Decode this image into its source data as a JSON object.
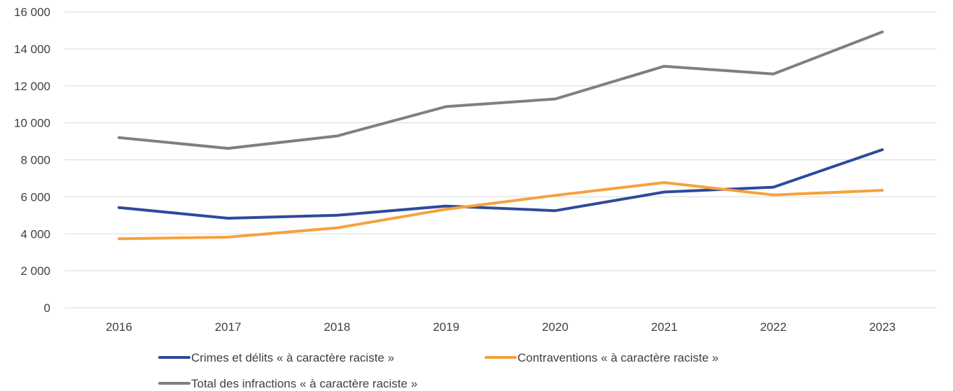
{
  "chart_data": {
    "type": "line",
    "title": "",
    "xlabel": "",
    "ylabel": "",
    "categories": [
      "2016",
      "2017",
      "2018",
      "2019",
      "2020",
      "2021",
      "2022",
      "2023"
    ],
    "ylim": [
      0,
      16000
    ],
    "y_ticks": [
      0,
      2000,
      4000,
      6000,
      8000,
      10000,
      12000,
      14000,
      16000
    ],
    "y_tick_labels": [
      "0",
      "2 000",
      "4 000",
      "6 000",
      "8 000",
      "10 000",
      "12 000",
      "14 000",
      "16 000"
    ],
    "grid": true,
    "legend_position": "bottom",
    "series": [
      {
        "name": "Crimes et délits « à caractère raciste »",
        "color": "#2f4a9a",
        "values": [
          5420,
          4840,
          5000,
          5500,
          5250,
          6260,
          6520,
          8550
        ]
      },
      {
        "name": "Contraventions « à caractère raciste »",
        "color": "#f7a13c",
        "values": [
          3730,
          3820,
          4320,
          5330,
          6080,
          6770,
          6100,
          6350
        ]
      },
      {
        "name": "Total des infractions « à caractère raciste »",
        "color": "#7f7f7f",
        "values": [
          9200,
          8620,
          9290,
          10880,
          11290,
          13060,
          12640,
          14920
        ]
      }
    ]
  }
}
